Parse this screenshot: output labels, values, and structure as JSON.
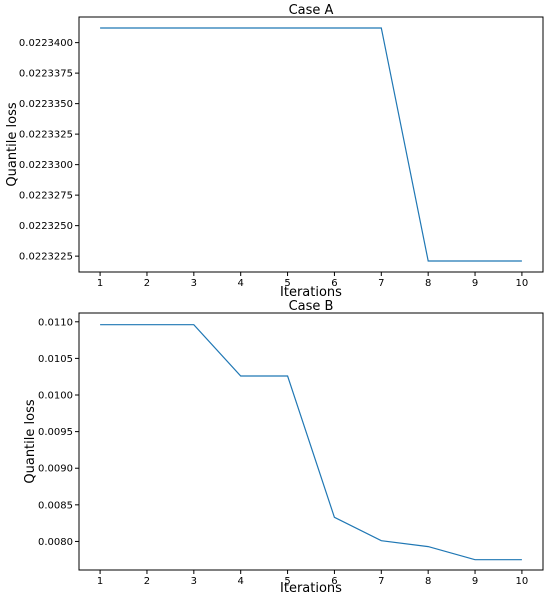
{
  "chart_data": [
    {
      "type": "line",
      "title": "Case A",
      "xlabel": "Iterations",
      "ylabel": "Quantile loss",
      "x": [
        1,
        2,
        3,
        4,
        5,
        6,
        7,
        8,
        9,
        10
      ],
      "series": [
        {
          "values": [
            0.0223412,
            0.0223412,
            0.0223412,
            0.0223412,
            0.0223412,
            0.0223412,
            0.0223412,
            0.0223221,
            0.0223221,
            0.0223221
          ],
          "color": "#1f77b4"
        }
      ],
      "xticks": [
        1,
        2,
        3,
        4,
        5,
        6,
        7,
        8,
        9,
        10
      ],
      "xtick_labels": [
        "1",
        "2",
        "3",
        "4",
        "5",
        "6",
        "7",
        "8",
        "9",
        "10"
      ],
      "yticks": [
        0.0223225,
        0.022325,
        0.0223275,
        0.02233,
        0.0223325,
        0.022335,
        0.0223375,
        0.02234
      ],
      "ytick_labels": [
        "0.0223225",
        "0.0223250",
        "0.0223275",
        "0.0223300",
        "0.0223325",
        "0.0223350",
        "0.0223375",
        "0.0223400"
      ],
      "xlim": [
        0.55,
        10.45
      ],
      "ylim": [
        0.0223212,
        0.0223421
      ],
      "grid": false
    },
    {
      "type": "line",
      "title": "Case B",
      "xlabel": "Iterations",
      "ylabel": "Quantile loss",
      "x": [
        1,
        2,
        3,
        4,
        5,
        6,
        7,
        8,
        9,
        10
      ],
      "series": [
        {
          "values": [
            0.01096,
            0.01096,
            0.01096,
            0.01026,
            0.01026,
            0.00833,
            0.00801,
            0.00793,
            0.00775,
            0.00775
          ],
          "color": "#1f77b4"
        }
      ],
      "xticks": [
        1,
        2,
        3,
        4,
        5,
        6,
        7,
        8,
        9,
        10
      ],
      "xtick_labels": [
        "1",
        "2",
        "3",
        "4",
        "5",
        "6",
        "7",
        "8",
        "9",
        "10"
      ],
      "yticks": [
        0.008,
        0.0085,
        0.009,
        0.0095,
        0.01,
        0.0105,
        0.011
      ],
      "ytick_labels": [
        "0.0080",
        "0.0085",
        "0.0090",
        "0.0095",
        "0.0100",
        "0.0105",
        "0.0110"
      ],
      "xlim": [
        0.55,
        10.45
      ],
      "ylim": [
        0.00761,
        0.01112
      ],
      "grid": false
    }
  ]
}
